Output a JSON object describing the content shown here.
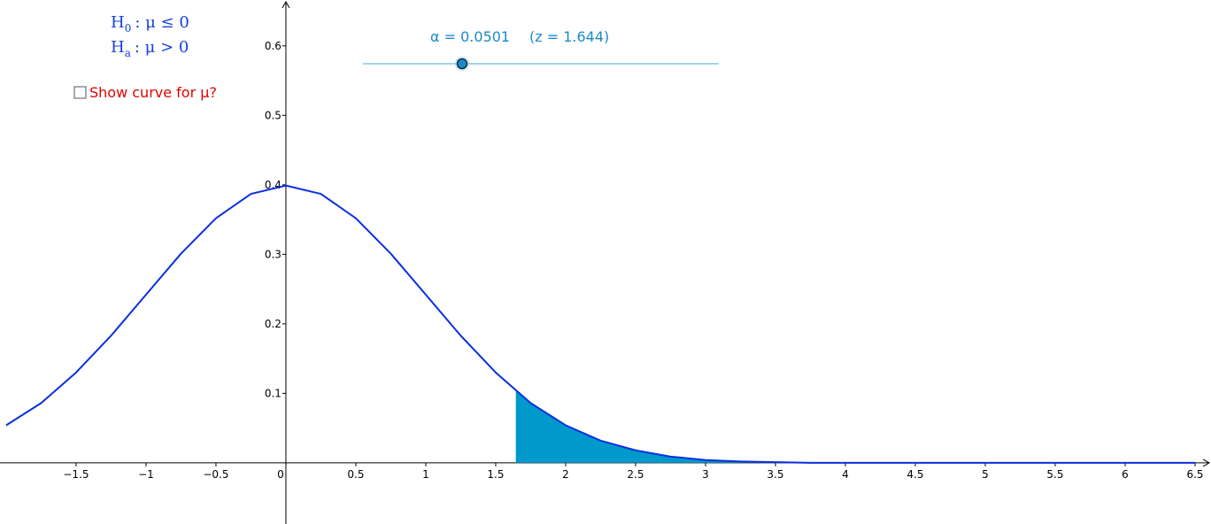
{
  "chart_data": {
    "type": "line",
    "hypotheses": [
      {
        "symbol": "H",
        "sub": "0",
        "text": ":  μ  ≤  0"
      },
      {
        "symbol": "H",
        "sub": "a",
        "text": ":  μ  >  0"
      }
    ],
    "checkbox_label": "Show curve for μ?",
    "slider_label": "α = 0.0501",
    "critical_z": {
      "value": 1.644,
      "label": "(z = 1.644)"
    },
    "x": [
      -2,
      -1.75,
      -1.5,
      -1.25,
      -1,
      -0.75,
      -0.5,
      -0.25,
      0,
      0.25,
      0.5,
      0.75,
      1,
      1.25,
      1.5,
      1.75,
      2,
      2.25,
      2.5,
      2.75,
      3,
      3.25,
      3.5,
      3.75,
      4,
      4.25,
      4.5,
      4.75,
      5,
      5.25,
      5.5,
      5.75,
      6,
      6.25,
      6.5
    ],
    "series": [
      {
        "color": "#0a2fe0",
        "shade_color": "#0099cc",
        "values": [
          0.054,
          0.086,
          0.13,
          0.183,
          0.242,
          0.301,
          0.352,
          0.387,
          0.399,
          0.387,
          0.352,
          0.301,
          0.242,
          0.183,
          0.13,
          0.086,
          0.054,
          0.032,
          0.018,
          0.009,
          0.004,
          0.002,
          0.001,
          0,
          0,
          0,
          0,
          0,
          0,
          0,
          0,
          0,
          0,
          0,
          0
        ]
      }
    ],
    "xlim": [
      -2.044,
      6.614
    ],
    "ylim": [
      -0.088,
      0.666
    ],
    "xticks": [
      {
        "value": -1.5,
        "label": "−1.5"
      },
      {
        "value": -1,
        "label": "−1"
      },
      {
        "value": -0.5,
        "label": "−0.5"
      },
      0,
      0.5,
      1,
      1.5,
      2,
      2.5,
      3,
      3.5,
      4,
      4.5,
      5,
      5.5,
      6,
      6.5
    ],
    "yticks": [
      0.1,
      0.2,
      0.3,
      0.4,
      0.5,
      0.6
    ]
  }
}
